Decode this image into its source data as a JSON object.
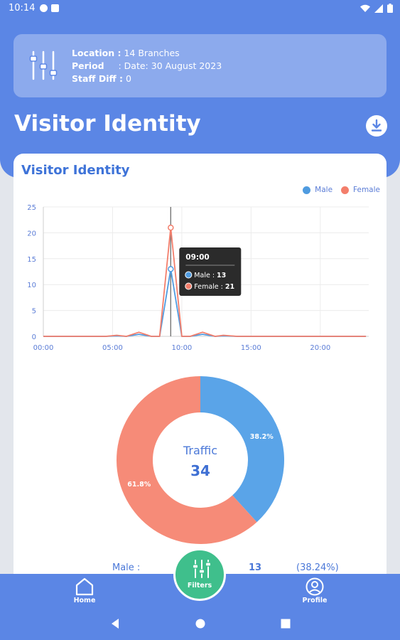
{
  "status_bar": {
    "time": "10:14"
  },
  "header": {
    "info": {
      "location_label": "Location :",
      "location_value": " 14 Branches",
      "period_label": "Period",
      "period_value": "     : Date: 30 August 2023",
      "staff_label": "Staff Diff :",
      "staff_value": " 0"
    },
    "title": "Visitor Identity"
  },
  "card": {
    "title": "Visitor Identity",
    "legend": [
      {
        "name": "Male",
        "color": "#4f9be0"
      },
      {
        "name": "Female",
        "color": "#f37e6b"
      }
    ]
  },
  "chart_data": [
    {
      "type": "line",
      "title": "",
      "xlabel": "",
      "ylabel": "",
      "x_ticks": [
        "00:00",
        "05:00",
        "10:00",
        "15:00",
        "20:00"
      ],
      "y_ticks": [
        0,
        5,
        10,
        15,
        20,
        25
      ],
      "ylim": [
        0,
        25
      ],
      "xlim": [
        0,
        23.5
      ],
      "grid": true,
      "legend": "top-right",
      "series": [
        {
          "name": "Male",
          "color": "#4f9be0",
          "x": [
            0,
            4.5,
            5.3,
            6,
            6.9,
            7.8,
            8.4,
            9.2,
            10,
            10.6,
            11.5,
            12.4,
            13,
            14,
            23.3
          ],
          "y": [
            0,
            0,
            0.1,
            0,
            0.4,
            0,
            0,
            13,
            0,
            0,
            0.4,
            0,
            0.1,
            0,
            0
          ]
        },
        {
          "name": "Female",
          "color": "#f37e6b",
          "x": [
            0,
            4.5,
            5.3,
            6,
            6.9,
            7.8,
            8.4,
            9.2,
            10,
            10.6,
            11.5,
            12.4,
            13,
            14,
            23.3
          ],
          "y": [
            0,
            0,
            0.2,
            0,
            0.8,
            0,
            0,
            21,
            0,
            0,
            0.8,
            0,
            0.2,
            0,
            0
          ]
        }
      ],
      "cursor_x": 9.2,
      "tooltip": {
        "title": "09:00",
        "rows": [
          {
            "label": "Male : ",
            "value": "13",
            "color": "#4f9be0"
          },
          {
            "label": "Female : ",
            "value": "21",
            "color": "#f37e6b"
          }
        ]
      }
    },
    {
      "type": "pie",
      "title": "",
      "center_label": "Traffic",
      "center_value": "34",
      "slices": [
        {
          "name": "Male",
          "value": 13,
          "label": "38.2%",
          "color": "#5aa4e8"
        },
        {
          "name": "Female",
          "value": 21,
          "label": "61.8%",
          "color": "#f68b78"
        }
      ]
    }
  ],
  "summary": {
    "label": "Male :",
    "count": "13",
    "pct": "(38.24%)"
  },
  "nav": {
    "home_label": "Home",
    "filters_label": "Filters",
    "profile_label": "Profile"
  }
}
